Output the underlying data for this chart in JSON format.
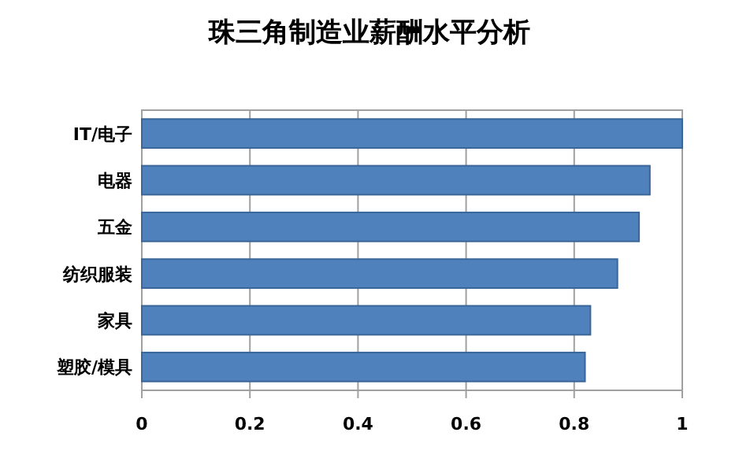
{
  "chart_data": {
    "type": "bar",
    "orientation": "horizontal",
    "title": "珠三角制造业薪酬水平分析",
    "categories": [
      "IT/电子",
      "电器",
      "五金",
      "纺织服装",
      "家具",
      "塑胶/模具"
    ],
    "values": [
      1.0,
      0.94,
      0.92,
      0.88,
      0.83,
      0.82
    ],
    "color": "#4f81bd",
    "xlim": [
      0,
      1
    ],
    "xticks": [
      0,
      0.2,
      0.4,
      0.6,
      0.8,
      1
    ],
    "grid": "x"
  }
}
